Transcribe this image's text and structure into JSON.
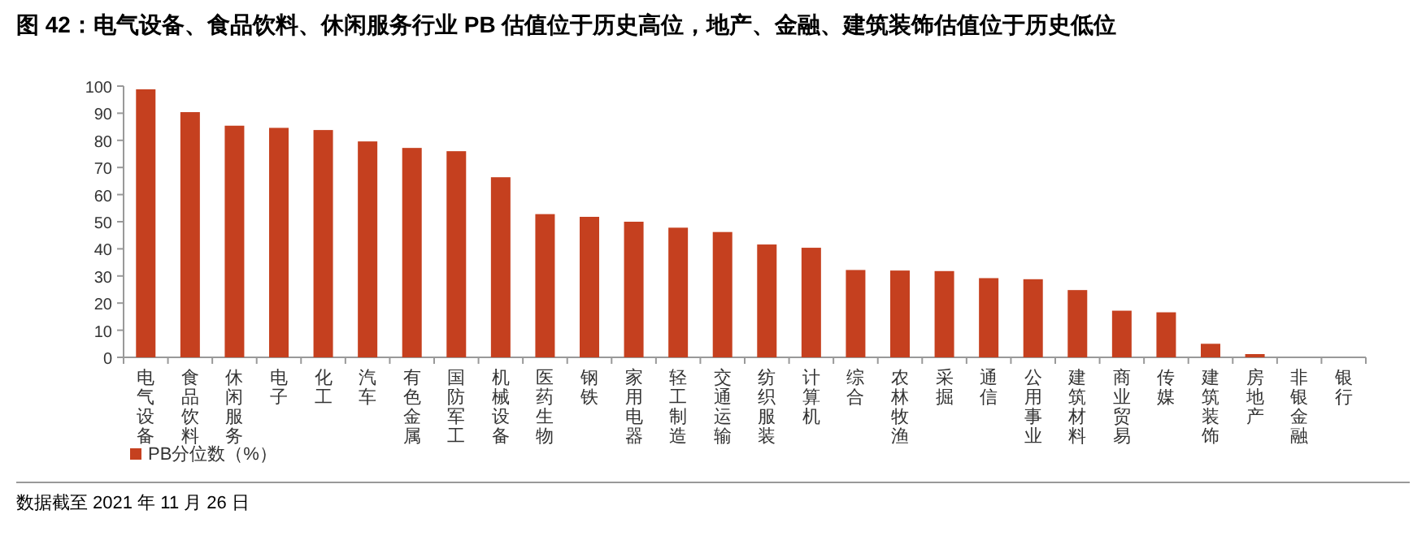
{
  "chart_data": {
    "type": "bar",
    "title": "图 42：电气设备、食品饮料、休闲服务行业 PB 估值位于历史高位，地产、金融、建筑装饰估值位于历史低位",
    "categories": [
      "电气设备",
      "食品饮料",
      "休闲服务",
      "电子",
      "化工",
      "汽车",
      "有色金属",
      "国防军工",
      "机械设备",
      "医药生物",
      "钢铁",
      "家用电器",
      "轻工制造",
      "交通运输",
      "纺织服装",
      "计算机",
      "综合",
      "农林牧渔",
      "采掘",
      "通信",
      "公用事业",
      "建筑材料",
      "商业贸易",
      "传媒",
      "建筑装饰",
      "房地产",
      "非银金融",
      "银行"
    ],
    "series": [
      {
        "name": "PB分位数（%）",
        "color": "#c5401f",
        "values": [
          98.8,
          90.4,
          85.4,
          84.6,
          83.8,
          79.6,
          77.2,
          76,
          66.4,
          52.8,
          51.8,
          50,
          47.8,
          46.2,
          41.6,
          40.4,
          32.2,
          32,
          31.8,
          29.2,
          28.8,
          24.8,
          17.2,
          16.6,
          5,
          1.2,
          0,
          0
        ]
      }
    ],
    "ylim": [
      0,
      100
    ],
    "yticks": [
      0,
      10,
      20,
      30,
      40,
      50,
      60,
      70,
      80,
      90,
      100
    ],
    "grid": false,
    "legend": "bottom left",
    "annotations": [
      "数据截至 2021 年 11 月 26 日"
    ]
  }
}
